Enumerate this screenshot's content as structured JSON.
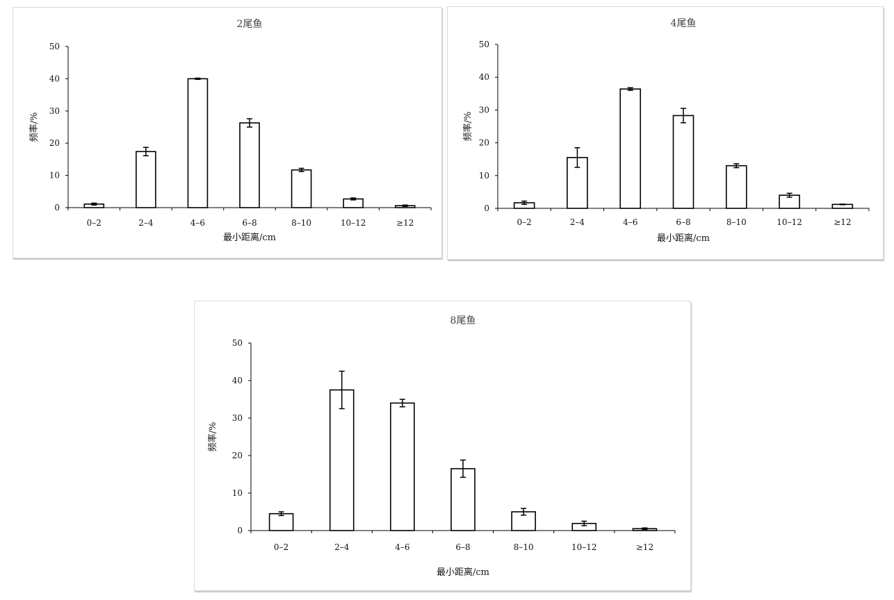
{
  "chart_data": [
    {
      "type": "bar",
      "title": "2尾鱼",
      "xlabel": "最小距离/cm",
      "ylabel": "频率/%",
      "ylim": [
        0,
        50
      ],
      "yticks": [
        "0",
        "10",
        "20",
        "30",
        "40",
        "50"
      ],
      "categories": [
        "0–2",
        "2–4",
        "4–6",
        "6–8",
        "8–10",
        "10–12",
        "≥12"
      ],
      "values": [
        1.1,
        17.4,
        40.0,
        26.3,
        11.7,
        2.7,
        0.6
      ],
      "errors": [
        0.3,
        1.3,
        0.2,
        1.3,
        0.5,
        0.3,
        0.2
      ]
    },
    {
      "type": "bar",
      "title": "4尾鱼",
      "xlabel": "最小距离/cm",
      "ylabel": "频率/%",
      "ylim": [
        0,
        50
      ],
      "yticks": [
        "0",
        "10",
        "20",
        "30",
        "40",
        "50"
      ],
      "categories": [
        "0–2",
        "2–4",
        "4–6",
        "6–8",
        "8–10",
        "10–12",
        "≥12"
      ],
      "values": [
        1.7,
        15.5,
        36.4,
        28.3,
        13.0,
        4.0,
        1.2
      ],
      "errors": [
        0.5,
        3.0,
        0.4,
        2.2,
        0.6,
        0.6,
        0.1
      ]
    },
    {
      "type": "bar",
      "title": "8尾鱼",
      "xlabel": "最小距离/cm",
      "ylabel": "频率/%",
      "ylim": [
        0,
        50
      ],
      "yticks": [
        "0",
        "10",
        "20",
        "30",
        "40",
        "50"
      ],
      "categories": [
        "0–2",
        "2–4",
        "4–6",
        "6–8",
        "8–10",
        "10–12",
        "≥12"
      ],
      "values": [
        4.5,
        37.5,
        34.0,
        16.5,
        5.0,
        1.9,
        0.5
      ],
      "errors": [
        0.5,
        5.0,
        1.0,
        2.3,
        0.9,
        0.6,
        0.2
      ]
    }
  ]
}
